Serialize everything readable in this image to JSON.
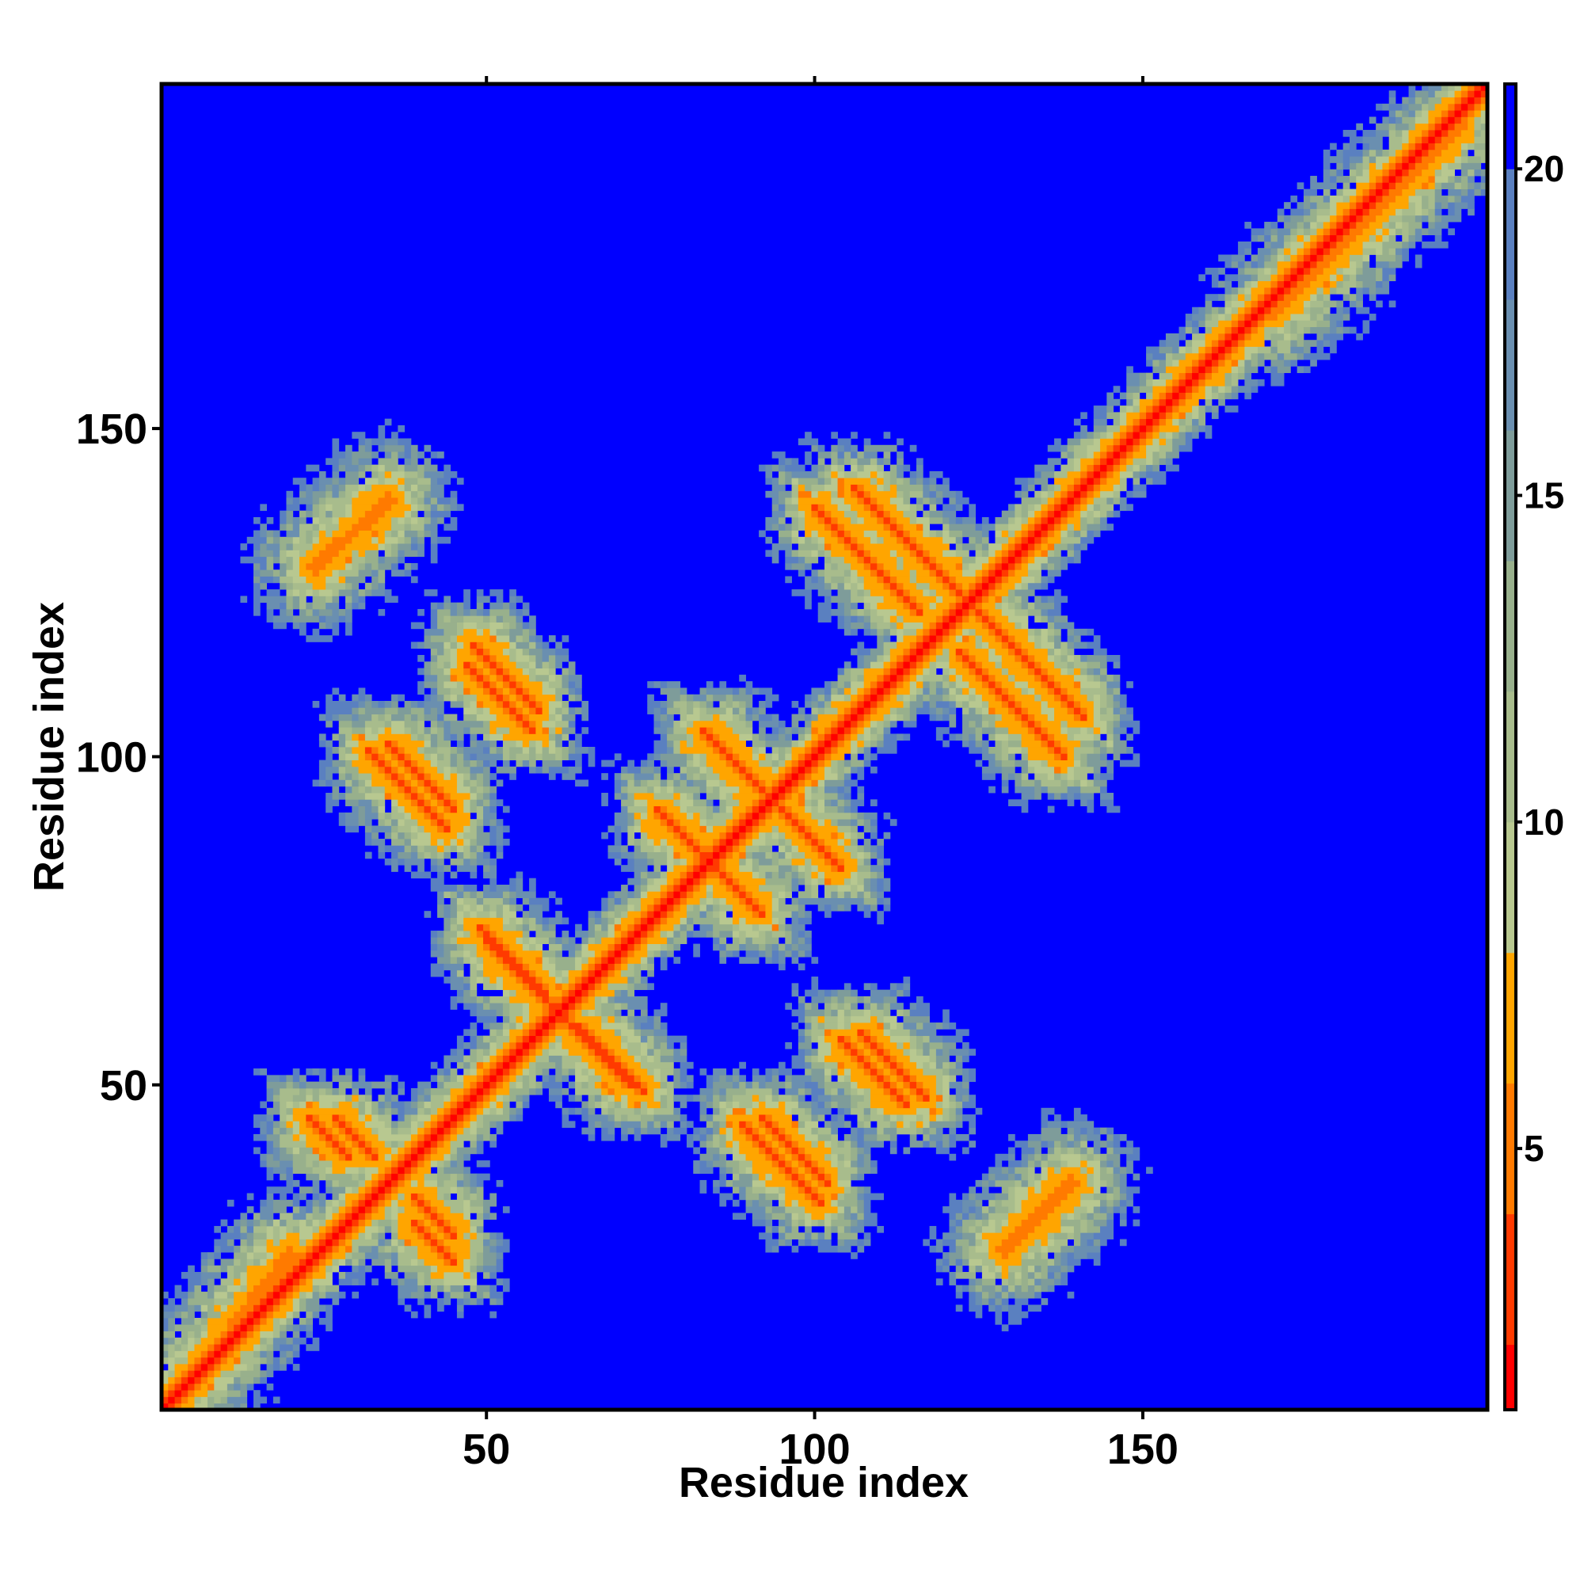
{
  "chart_data": {
    "type": "heatmap",
    "title": "",
    "xlabel": "Residue index",
    "ylabel": "Residue index",
    "xlim": [
      1,
      202
    ],
    "ylim": [
      1,
      202
    ],
    "x_ticks": [
      50,
      100,
      150
    ],
    "y_ticks": [
      50,
      100,
      150
    ],
    "x_tick_labels": [
      "50",
      "100",
      "150"
    ],
    "y_tick_labels": [
      "50",
      "100",
      "150"
    ],
    "grid": false,
    "legend": "colorbar-right",
    "value_range": [
      1,
      21.3
    ],
    "colorbar": {
      "ticks": [
        5,
        10,
        15,
        20
      ],
      "tick_labels": [
        "5",
        "10",
        "15",
        "20"
      ],
      "colors": [
        {
          "max": 2,
          "color": "#ff0000"
        },
        {
          "max": 4,
          "color": "#ff3a00"
        },
        {
          "max": 6,
          "color": "#ff7a00"
        },
        {
          "max": 8,
          "color": "#ffa500"
        },
        {
          "max": 10,
          "color": "#b8c890"
        },
        {
          "max": 12,
          "color": "#a8bc8c"
        },
        {
          "max": 14,
          "color": "#98b08c"
        },
        {
          "max": 16,
          "color": "#7e9c9a"
        },
        {
          "max": 18,
          "color": "#6a8fb0"
        },
        {
          "max": 20,
          "color": "#5a80c0"
        },
        {
          "max": 99,
          "color": "#0000ff"
        }
      ]
    },
    "matrix_structure": {
      "description_type": "residue contact distance map",
      "main_diagonal": {
        "from": 1,
        "to": 202
      },
      "anti_diagonal_contacts": [
        {
          "center": [
            52,
            109
          ],
          "length": 10
        },
        {
          "center": [
            40,
            97
          ],
          "length": 10
        },
        {
          "center": [
            69,
            54
          ],
          "length": 10
        },
        {
          "center": [
            55,
            67
          ],
          "length": 10
        },
        {
          "center": [
            97,
            90
          ],
          "length": 14
        },
        {
          "center": [
            86,
            82
          ],
          "length": 12
        },
        {
          "center": [
            115,
            132
          ],
          "length": 18
        },
        {
          "center": [
            130,
            108
          ],
          "length": 16
        },
        {
          "center": [
            112,
            53
          ],
          "length": 10
        },
        {
          "center": [
            95,
            38
          ],
          "length": 12
        },
        {
          "center": [
            26,
            42
          ],
          "length": 6
        },
        {
          "center": [
            42,
            30
          ],
          "length": 6
        }
      ],
      "parallel_contacts": [
        {
          "from": [
            24,
            129
          ],
          "to": [
            35,
            139
          ]
        },
        {
          "from": [
            129,
            25
          ],
          "to": [
            139,
            35
          ]
        },
        {
          "from": [
            5,
            5
          ],
          "to": [
            20,
            24
          ]
        },
        {
          "from": [
            170,
            168
          ],
          "to": [
            198,
            196
          ]
        }
      ]
    }
  }
}
